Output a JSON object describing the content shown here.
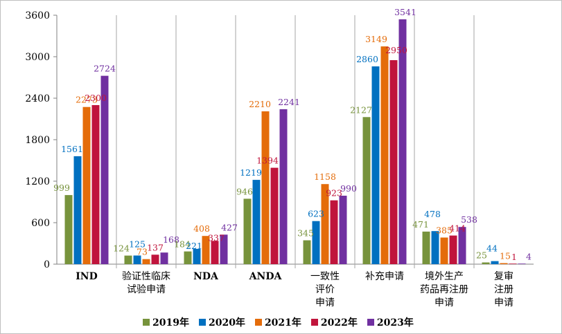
{
  "chart_data": {
    "type": "bar",
    "title": "",
    "xlabel": "",
    "ylabel": "",
    "ylim": [
      0,
      3600
    ],
    "yticks": [
      0,
      600,
      1200,
      1800,
      2400,
      3000,
      3600
    ],
    "grid": false,
    "legend_position": "bottom",
    "categories": [
      {
        "lines": [
          "IND"
        ],
        "bold": true
      },
      {
        "lines": [
          "验证性临床",
          "试验申请"
        ],
        "bold": false
      },
      {
        "lines": [
          "NDA"
        ],
        "bold": true
      },
      {
        "lines": [
          "ANDA"
        ],
        "bold": true
      },
      {
        "lines": [
          "一致性",
          "评价",
          "申请"
        ],
        "bold": false
      },
      {
        "lines": [
          "补充申请"
        ],
        "bold": false
      },
      {
        "lines": [
          "境外生产",
          "药品再注册",
          "申请"
        ],
        "bold": false
      },
      {
        "lines": [
          "复审",
          "注册",
          "申请"
        ],
        "bold": false
      }
    ],
    "series": [
      {
        "name": "2019年",
        "color": "#77933c",
        "values": [
          999,
          124,
          184,
          946,
          345,
          2127,
          471,
          25
        ]
      },
      {
        "name": "2020年",
        "color": "#0070c0",
        "values": [
          1561,
          125,
          221,
          1219,
          623,
          2860,
          478,
          44
        ]
      },
      {
        "name": "2021年",
        "color": "#e46c0a",
        "values": [
          2273,
          73,
          408,
          2210,
          1158,
          3149,
          385,
          15
        ]
      },
      {
        "name": "2022年",
        "color": "#c0143c",
        "values": [
          2300,
          137,
          337,
          1394,
          923,
          2950,
          414,
          1
        ]
      },
      {
        "name": "2023年",
        "color": "#7030a0",
        "values": [
          2724,
          168,
          427,
          2241,
          990,
          3541,
          538,
          4
        ]
      }
    ]
  }
}
